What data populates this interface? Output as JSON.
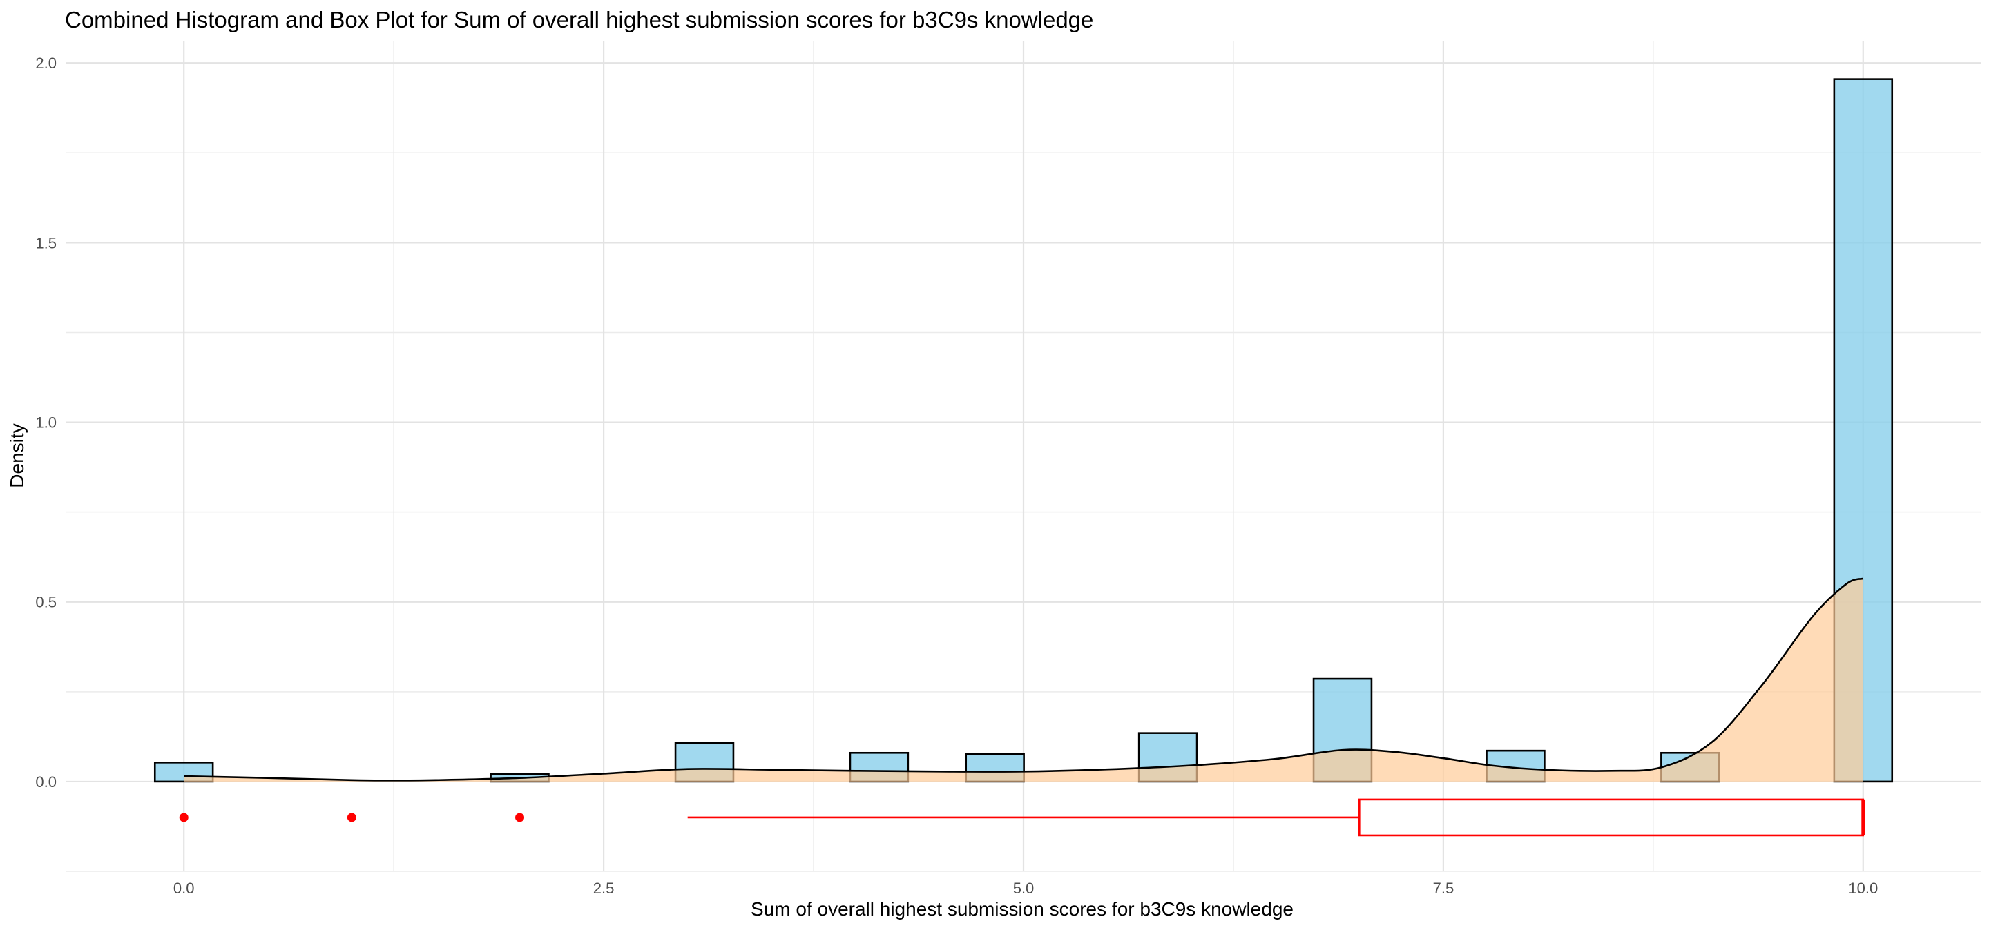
{
  "chart_data": {
    "type": "bar",
    "title": "Combined Histogram and Box Plot for Sum of overall highest submission scores for b3C9s knowledge",
    "xlabel": "Sum of overall highest submission scores for b3C9s knowledge",
    "ylabel": "Density",
    "xlim": [
      -0.7,
      10.7
    ],
    "ylim": [
      -0.25,
      2.06
    ],
    "x_ticks": [
      0.0,
      2.5,
      5.0,
      7.5,
      10.0
    ],
    "x_tick_labels": [
      "0.0",
      "2.5",
      "5.0",
      "7.5",
      "10.0"
    ],
    "y_ticks": [
      0.0,
      0.5,
      1.0,
      1.5,
      2.0
    ],
    "y_tick_labels": [
      "0.0",
      "0.5",
      "1.0",
      "1.5",
      "2.0"
    ],
    "grid": true,
    "histogram": {
      "bin_width": 0.345,
      "fill": "#87ceeb",
      "edge_color": "#000000",
      "bins": [
        {
          "x": 0.0,
          "density": 0.053
        },
        {
          "x": 2.0,
          "density": 0.021
        },
        {
          "x": 3.1,
          "density": 0.108
        },
        {
          "x": 4.14,
          "density": 0.08
        },
        {
          "x": 4.83,
          "density": 0.077
        },
        {
          "x": 5.86,
          "density": 0.135
        },
        {
          "x": 6.9,
          "density": 0.286
        },
        {
          "x": 7.93,
          "density": 0.086
        },
        {
          "x": 8.97,
          "density": 0.08
        },
        {
          "x": 10.0,
          "density": 1.955
        }
      ]
    },
    "density_curve": {
      "fill": "#ffcc99",
      "edge_color": "#000000",
      "x": [
        0.0,
        0.5,
        1.0,
        1.2,
        1.5,
        2.0,
        2.5,
        3.0,
        3.5,
        4.0,
        4.5,
        5.0,
        5.5,
        6.0,
        6.5,
        6.9,
        7.2,
        7.5,
        7.8,
        8.1,
        8.5,
        8.8,
        9.1,
        9.4,
        9.7,
        9.9,
        10.0
      ],
      "y": [
        0.015,
        0.01,
        0.004,
        0.003,
        0.004,
        0.01,
        0.022,
        0.035,
        0.033,
        0.03,
        0.028,
        0.028,
        0.034,
        0.045,
        0.063,
        0.088,
        0.083,
        0.065,
        0.044,
        0.033,
        0.03,
        0.04,
        0.11,
        0.27,
        0.46,
        0.55,
        0.565
      ]
    },
    "boxplot": {
      "color": "#ff0000",
      "y_position": -0.1,
      "box_half_height": 0.05,
      "whisker_min": 3.0,
      "q1": 7.0,
      "median": 10.0,
      "q3": 10.0,
      "whisker_max": 10.0,
      "outliers": [
        0.0,
        1.0,
        2.0
      ]
    }
  }
}
